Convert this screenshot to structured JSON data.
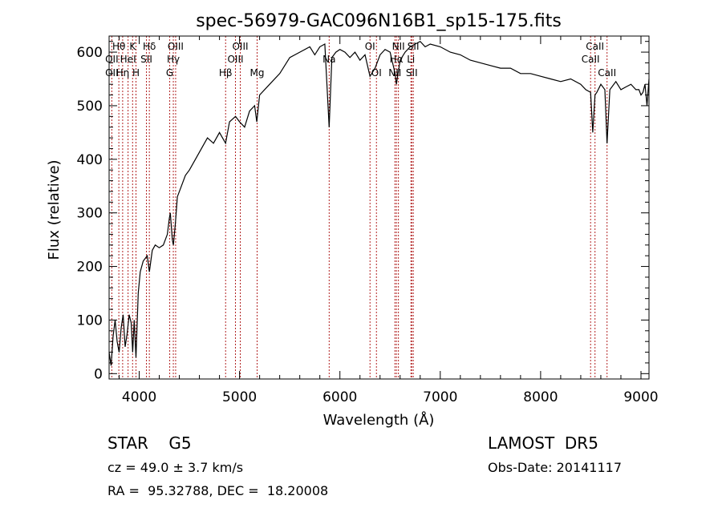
{
  "chart_data": {
    "type": "line",
    "title": "spec-56979-GAC096N16B1_sp15-175.fits",
    "xlabel": "Wavelength (Å)",
    "ylabel": "Flux (relative)",
    "xlim": [
      3700,
      9080
    ],
    "ylim": [
      -10,
      630
    ],
    "xticks": [
      4000,
      5000,
      6000,
      7000,
      8000,
      9000
    ],
    "yticks": [
      0,
      100,
      200,
      300,
      400,
      500,
      600
    ],
    "line_color": "#000000",
    "marker_color": "#b22222",
    "spectrum": {
      "x": [
        3700,
        3720,
        3740,
        3760,
        3780,
        3800,
        3820,
        3840,
        3860,
        3880,
        3900,
        3920,
        3935,
        3950,
        3968,
        3990,
        4010,
        4040,
        4080,
        4101,
        4130,
        4160,
        4200,
        4240,
        4280,
        4300,
        4310,
        4330,
        4340,
        4360,
        4380,
        4420,
        4460,
        4500,
        4560,
        4620,
        4680,
        4740,
        4800,
        4861,
        4900,
        4960,
        5000,
        5050,
        5100,
        5150,
        5172,
        5200,
        5300,
        5400,
        5500,
        5600,
        5700,
        5750,
        5800,
        5850,
        5893,
        5920,
        5960,
        6000,
        6050,
        6100,
        6150,
        6200,
        6250,
        6300,
        6350,
        6400,
        6450,
        6500,
        6550,
        6563,
        6600,
        6650,
        6700,
        6750,
        6800,
        6850,
        6900,
        7000,
        7100,
        7200,
        7300,
        7400,
        7500,
        7600,
        7700,
        7800,
        7900,
        8000,
        8100,
        8200,
        8300,
        8400,
        8450,
        8498,
        8520,
        8542,
        8560,
        8600,
        8640,
        8662,
        8690,
        8750,
        8800,
        8850,
        8900,
        8950,
        8980,
        9000,
        9020,
        9040,
        9060,
        9080
      ],
      "y": [
        40,
        15,
        70,
        100,
        60,
        40,
        85,
        110,
        50,
        75,
        110,
        95,
        40,
        100,
        30,
        150,
        190,
        210,
        220,
        190,
        230,
        240,
        235,
        240,
        260,
        290,
        300,
        250,
        240,
        280,
        330,
        350,
        370,
        380,
        400,
        420,
        440,
        430,
        450,
        430,
        470,
        480,
        470,
        460,
        490,
        500,
        470,
        520,
        540,
        560,
        590,
        600,
        610,
        595,
        610,
        615,
        460,
        590,
        600,
        605,
        600,
        590,
        600,
        585,
        595,
        555,
        570,
        595,
        605,
        600,
        560,
        540,
        585,
        600,
        610,
        615,
        620,
        610,
        615,
        610,
        600,
        595,
        585,
        580,
        575,
        570,
        570,
        560,
        560,
        555,
        550,
        545,
        550,
        540,
        530,
        525,
        450,
        520,
        525,
        540,
        530,
        430,
        530,
        545,
        530,
        535,
        540,
        530,
        530,
        520,
        525,
        540,
        500,
        550
      ]
    },
    "lines": [
      {
        "wl": 3797,
        "label": "Hθ",
        "row": 1
      },
      {
        "wl": 3727,
        "label": "OII",
        "row": 2
      },
      {
        "wl": 3727,
        "label": "OII",
        "row": 3
      },
      {
        "wl": 3835,
        "label": "Hη",
        "row": 3
      },
      {
        "wl": 3889,
        "label": "HeI",
        "row": 2
      },
      {
        "wl": 3934,
        "label": "K",
        "row": 1
      },
      {
        "wl": 3968,
        "label": "H",
        "row": 3
      },
      {
        "wl": 4072,
        "label": "SII",
        "row": 2
      },
      {
        "wl": 4101,
        "label": "Hδ",
        "row": 1
      },
      {
        "wl": 4304,
        "label": "G",
        "row": 3
      },
      {
        "wl": 4340,
        "label": "Hγ",
        "row": 2
      },
      {
        "wl": 4363,
        "label": "OIII",
        "row": 1
      },
      {
        "wl": 4861,
        "label": "Hβ",
        "row": 3
      },
      {
        "wl": 4959,
        "label": "OIII",
        "row": 2
      },
      {
        "wl": 5007,
        "label": "OIII",
        "row": 1
      },
      {
        "wl": 5175,
        "label": "Mg",
        "row": 3
      },
      {
        "wl": 5893,
        "label": "Na",
        "row": 2
      },
      {
        "wl": 6300,
        "label": "OI",
        "row": 1
      },
      {
        "wl": 6364,
        "label": "OI",
        "row": 3
      },
      {
        "wl": 6548,
        "label": "NII",
        "row": 3
      },
      {
        "wl": 6563,
        "label": "Hα",
        "row": 2
      },
      {
        "wl": 6583,
        "label": "NII",
        "row": 1
      },
      {
        "wl": 6708,
        "label": "Li",
        "row": 2
      },
      {
        "wl": 6716,
        "label": "SII",
        "row": 3
      },
      {
        "wl": 6731,
        "label": "SII",
        "row": 1
      },
      {
        "wl": 8498,
        "label": "CaII",
        "row": 2
      },
      {
        "wl": 8542,
        "label": "CaII",
        "row": 1
      },
      {
        "wl": 8662,
        "label": "CaII",
        "row": 3
      }
    ]
  },
  "info": {
    "class_line": "STAR    G5",
    "survey": "LAMOST  DR5",
    "cz": "cz = 49.0 ± 3.7 km/s",
    "obs_date": "Obs-Date: 20141117",
    "radec": "RA =  95.32788, DEC =  18.20008"
  }
}
